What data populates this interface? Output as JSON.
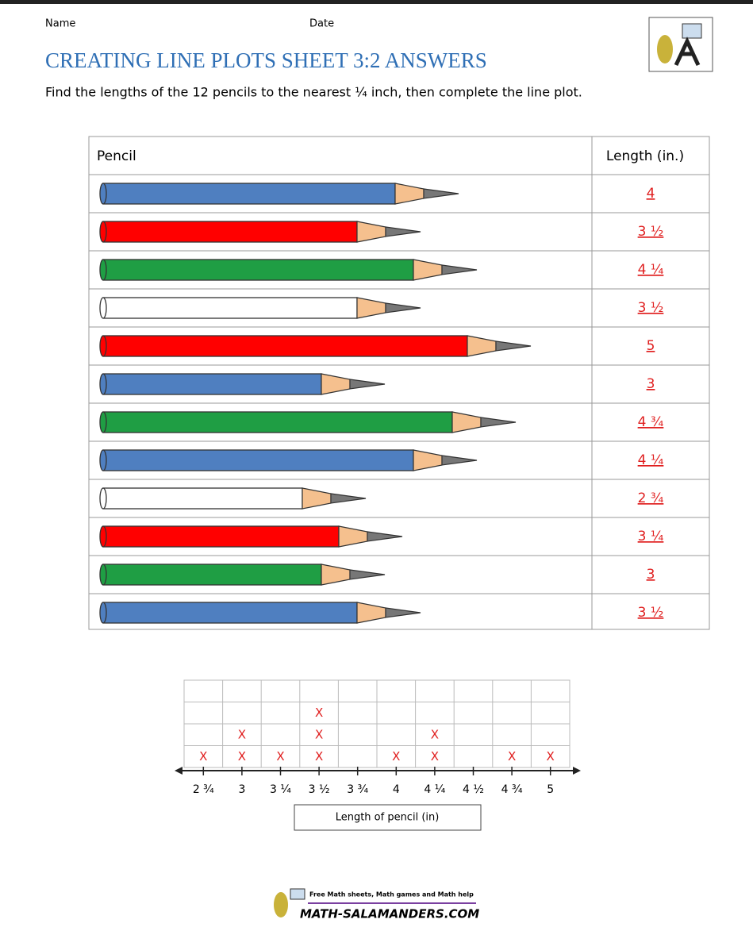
{
  "header": {
    "name_label": "Name",
    "date_label": "Date",
    "title": "CREATING LINE PLOTS SHEET 3:2 ANSWERS",
    "instructions": "Find the lengths of the 12 pencils to the nearest ¼ inch, then complete the line plot."
  },
  "table": {
    "headers": [
      "Pencil",
      "Length (in.)"
    ],
    "rows": [
      {
        "color": "#4f7fc0",
        "length": "4"
      },
      {
        "color": "#ff0000",
        "length": "3 ½"
      },
      {
        "color": "#1f9e44",
        "length": "4 ¼"
      },
      {
        "color": "#ffffff",
        "length": "3 ½"
      },
      {
        "color": "#ff0000",
        "length": "5"
      },
      {
        "color": "#4f7fc0",
        "length": "3"
      },
      {
        "color": "#1f9e44",
        "length": "4 ¾"
      },
      {
        "color": "#4f7fc0",
        "length": "4 ¼"
      },
      {
        "color": "#ffffff",
        "length": "2 ¾"
      },
      {
        "color": "#ff0000",
        "length": "3 ¼"
      },
      {
        "color": "#1f9e44",
        "length": "3"
      },
      {
        "color": "#4f7fc0",
        "length": "3 ½"
      }
    ]
  },
  "line_plot": {
    "ticks": [
      "2 ¾",
      "3",
      "3 ¼",
      "3 ½",
      "3 ¾",
      "4",
      "4 ¼",
      "4 ½",
      "4 ¾",
      "5"
    ],
    "counts": [
      1,
      2,
      1,
      3,
      0,
      1,
      2,
      0,
      1,
      1
    ],
    "mark": "X",
    "mark_color": "#e02020",
    "axis_label": "Length of pencil (in)"
  },
  "footer": {
    "tagline": "Free Math sheets, Math games and Math help",
    "site": "MATH-SALAMANDERS.COM"
  }
}
